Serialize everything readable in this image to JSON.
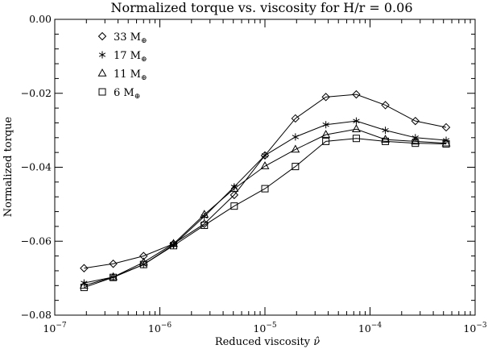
{
  "chart_data": {
    "type": "line",
    "title": "Normalized torque vs. viscosity for H/r = 0.06",
    "xlabel": "Reduced viscosity ",
    "xlabel_symbol": "ν̂",
    "ylabel": "Normalized torque",
    "xscale": "log",
    "xlim": [
      1e-07,
      0.001
    ],
    "ylim": [
      -0.08,
      0.0
    ],
    "grid": false,
    "legend_position": "top-left",
    "x_ticks": [
      {
        "value": 1e-07,
        "base": "10",
        "exp": "−7"
      },
      {
        "value": 1e-06,
        "base": "10",
        "exp": "−6"
      },
      {
        "value": 1e-05,
        "base": "10",
        "exp": "−5"
      },
      {
        "value": 0.0001,
        "base": "10",
        "exp": "−4"
      },
      {
        "value": 0.001,
        "base": "10",
        "exp": "−3"
      }
    ],
    "y_ticks": [
      {
        "value": 0.0,
        "label": "0.00"
      },
      {
        "value": -0.02,
        "label": "−0.02"
      },
      {
        "value": -0.04,
        "label": "−0.04"
      },
      {
        "value": -0.06,
        "label": "−0.06"
      },
      {
        "value": -0.08,
        "label": "−0.08"
      }
    ],
    "x": [
      1.9e-07,
      3.6e-07,
      7e-07,
      1.35e-06,
      2.65e-06,
      5.1e-06,
      1e-05,
      1.95e-05,
      3.8e-05,
      7.4e-05,
      0.00014,
      0.00027,
      0.00053
    ],
    "series": [
      {
        "name": "33 M",
        "sub": "⊕",
        "marker": "diamond",
        "values": [
          -0.0673,
          -0.0661,
          -0.064,
          -0.0607,
          -0.0553,
          -0.0475,
          -0.0368,
          -0.0268,
          -0.021,
          -0.0203,
          -0.0232,
          -0.0275,
          -0.0292
        ]
      },
      {
        "name": "17 M",
        "sub": "⊕",
        "marker": "asterisk",
        "values": [
          -0.0713,
          -0.0697,
          -0.0663,
          -0.061,
          -0.0533,
          -0.0453,
          -0.0368,
          -0.0318,
          -0.0285,
          -0.0275,
          -0.03,
          -0.032,
          -0.0327
        ]
      },
      {
        "name": "11 M",
        "sub": "⊕",
        "marker": "triangle",
        "values": [
          -0.072,
          -0.0697,
          -0.0657,
          -0.0607,
          -0.0528,
          -0.0458,
          -0.0397,
          -0.0352,
          -0.0312,
          -0.0297,
          -0.0325,
          -0.033,
          -0.0335
        ]
      },
      {
        "name": "6 M",
        "sub": "⊕",
        "marker": "square",
        "values": [
          -0.0725,
          -0.0698,
          -0.0663,
          -0.0612,
          -0.0557,
          -0.0505,
          -0.0458,
          -0.0398,
          -0.033,
          -0.0322,
          -0.033,
          -0.0335,
          -0.0337
        ]
      }
    ]
  }
}
